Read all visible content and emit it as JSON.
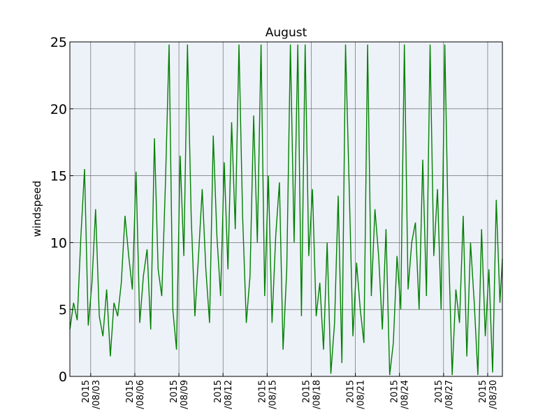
{
  "chart_data": {
    "type": "line",
    "title": "August",
    "ylabel": "windspeed",
    "xlabel": "",
    "ylim": [
      0,
      25
    ],
    "xlim": [
      "2015-08-01T14:00",
      "2015-08-31T00:00"
    ],
    "grid": true,
    "background": "#edf2f8",
    "line_color": "#008000",
    "y_ticks": [
      0,
      5,
      10,
      15,
      20,
      25
    ],
    "x_ticks": [
      {
        "date": "2015-08-03",
        "label_year": "2015",
        "label_day": "/08/03"
      },
      {
        "date": "2015-08-06",
        "label_year": "2015",
        "label_day": "/08/06"
      },
      {
        "date": "2015-08-09",
        "label_year": "2015",
        "label_day": "/08/09"
      },
      {
        "date": "2015-08-12",
        "label_year": "2015",
        "label_day": "/08/12"
      },
      {
        "date": "2015-08-15",
        "label_year": "2015",
        "label_day": "/08/15"
      },
      {
        "date": "2015-08-18",
        "label_year": "2015",
        "label_day": "/08/18"
      },
      {
        "date": "2015-08-21",
        "label_year": "2015",
        "label_day": "/08/21"
      },
      {
        "date": "2015-08-24",
        "label_year": "2015",
        "label_day": "/08/24"
      },
      {
        "date": "2015-08-27",
        "label_year": "2015",
        "label_day": "/08/27"
      },
      {
        "date": "2015-08-30",
        "label_year": "2015",
        "label_day": "/08/30"
      }
    ],
    "series": [
      {
        "x": [
          "2015-08-01T14:00",
          "2015-08-01T20:00",
          "2015-08-02T02:00",
          "2015-08-02T08:00",
          "2015-08-02T14:00",
          "2015-08-02T20:00",
          "2015-08-03T02:00",
          "2015-08-03T08:00",
          "2015-08-03T14:00",
          "2015-08-03T20:00",
          "2015-08-04T02:00",
          "2015-08-04T08:00",
          "2015-08-04T14:00",
          "2015-08-04T20:00",
          "2015-08-05T02:00",
          "2015-08-05T08:00",
          "2015-08-05T14:00",
          "2015-08-05T20:00",
          "2015-08-06T02:00",
          "2015-08-06T08:00",
          "2015-08-06T14:00",
          "2015-08-06T20:00",
          "2015-08-07T02:00",
          "2015-08-07T08:00",
          "2015-08-07T14:00",
          "2015-08-07T20:00",
          "2015-08-08T02:00",
          "2015-08-08T08:00",
          "2015-08-08T14:00",
          "2015-08-08T20:00",
          "2015-08-09T02:00",
          "2015-08-09T08:00",
          "2015-08-09T14:00",
          "2015-08-09T20:00",
          "2015-08-10T02:00",
          "2015-08-10T08:00",
          "2015-08-10T14:00",
          "2015-08-10T20:00",
          "2015-08-11T02:00",
          "2015-08-11T08:00",
          "2015-08-11T14:00",
          "2015-08-11T20:00",
          "2015-08-12T02:00",
          "2015-08-12T08:00",
          "2015-08-12T14:00",
          "2015-08-12T20:00",
          "2015-08-13T02:00",
          "2015-08-13T08:00",
          "2015-08-13T14:00",
          "2015-08-13T20:00",
          "2015-08-14T02:00",
          "2015-08-14T08:00",
          "2015-08-14T14:00",
          "2015-08-14T20:00",
          "2015-08-15T02:00",
          "2015-08-15T08:00",
          "2015-08-15T14:00",
          "2015-08-15T20:00",
          "2015-08-16T02:00",
          "2015-08-16T08:00",
          "2015-08-16T14:00",
          "2015-08-16T20:00",
          "2015-08-17T02:00",
          "2015-08-17T08:00",
          "2015-08-17T14:00",
          "2015-08-17T20:00",
          "2015-08-18T02:00",
          "2015-08-18T08:00",
          "2015-08-18T14:00",
          "2015-08-18T20:00",
          "2015-08-19T02:00",
          "2015-08-19T08:00",
          "2015-08-19T14:00",
          "2015-08-19T20:00",
          "2015-08-20T02:00",
          "2015-08-20T08:00",
          "2015-08-20T14:00",
          "2015-08-20T20:00",
          "2015-08-21T02:00",
          "2015-08-21T08:00",
          "2015-08-21T14:00",
          "2015-08-21T20:00",
          "2015-08-22T02:00",
          "2015-08-22T08:00",
          "2015-08-22T14:00",
          "2015-08-22T20:00",
          "2015-08-23T02:00",
          "2015-08-23T08:00",
          "2015-08-23T14:00",
          "2015-08-23T20:00",
          "2015-08-24T02:00",
          "2015-08-24T08:00",
          "2015-08-24T14:00",
          "2015-08-24T20:00",
          "2015-08-25T02:00",
          "2015-08-25T08:00",
          "2015-08-25T14:00",
          "2015-08-25T20:00",
          "2015-08-26T02:00",
          "2015-08-26T08:00",
          "2015-08-26T14:00",
          "2015-08-26T20:00",
          "2015-08-27T02:00",
          "2015-08-27T08:00",
          "2015-08-27T14:00",
          "2015-08-27T20:00",
          "2015-08-28T02:00",
          "2015-08-28T08:00",
          "2015-08-28T14:00",
          "2015-08-28T20:00",
          "2015-08-29T02:00",
          "2015-08-29T08:00",
          "2015-08-29T14:00",
          "2015-08-29T20:00",
          "2015-08-30T02:00",
          "2015-08-30T08:00",
          "2015-08-30T14:00",
          "2015-08-30T20:00",
          "2015-08-31T00:00"
        ],
        "y": [
          3.5,
          5.5,
          4.2,
          10.5,
          15.5,
          3.8,
          7.0,
          12.5,
          4.5,
          3.0,
          6.5,
          1.5,
          5.5,
          4.5,
          7.0,
          12.0,
          9.0,
          6.5,
          15.3,
          4.0,
          7.5,
          9.5,
          3.5,
          17.8,
          8.0,
          6.0,
          14.5,
          24.8,
          5.0,
          2.0,
          16.5,
          9.0,
          24.8,
          12.0,
          4.5,
          9.0,
          14.0,
          8.0,
          4.0,
          18.0,
          10.5,
          6.0,
          16.0,
          8.0,
          19.0,
          11.0,
          24.8,
          12.0,
          4.0,
          7.5,
          19.5,
          10.0,
          24.8,
          6.0,
          15.0,
          4.0,
          10.5,
          14.5,
          2.0,
          8.0,
          24.8,
          10.0,
          24.8,
          4.5,
          24.8,
          9.0,
          14.0,
          4.5,
          7.0,
          2.0,
          10.0,
          0.2,
          4.0,
          13.5,
          1.0,
          24.8,
          14.0,
          3.0,
          8.5,
          5.0,
          2.5,
          24.8,
          6.0,
          12.5,
          9.0,
          3.5,
          11.0,
          0.1,
          2.5,
          9.0,
          5.0,
          24.8,
          6.5,
          10.0,
          11.5,
          5.0,
          16.2,
          6.0,
          24.8,
          9.0,
          14.0,
          5.0,
          24.8,
          10.0,
          0.1,
          6.5,
          4.0,
          12.0,
          1.5,
          10.0,
          5.5,
          0.1,
          11.0,
          3.0,
          8.0,
          0.3,
          13.2,
          5.5,
          8.8
        ]
      }
    ]
  }
}
